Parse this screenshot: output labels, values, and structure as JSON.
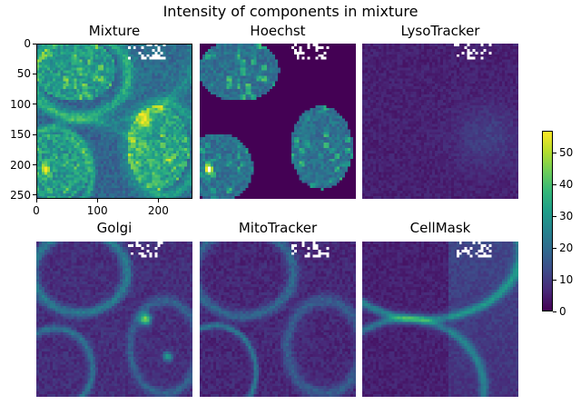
{
  "figure": {
    "title": "Intensity of components in mixture"
  },
  "chart_data": {
    "type": "heatmap",
    "colormap": "viridis",
    "panels": [
      {
        "name": "Mixture",
        "show_axes": true,
        "x_ticks": [
          0,
          100,
          200
        ],
        "y_ticks": [
          0,
          50,
          100,
          150,
          200,
          250
        ],
        "extent": [
          0,
          256
        ]
      },
      {
        "name": "Hoechst",
        "show_axes": false
      },
      {
        "name": "LysoTracker",
        "show_axes": false
      },
      {
        "name": "Golgi",
        "show_axes": false
      },
      {
        "name": "MitoTracker",
        "show_axes": false
      },
      {
        "name": "CellMask",
        "show_axes": false
      }
    ],
    "colorbar": {
      "min": 0,
      "max": 57,
      "ticks": [
        0,
        10,
        20,
        30,
        40,
        50
      ]
    }
  }
}
